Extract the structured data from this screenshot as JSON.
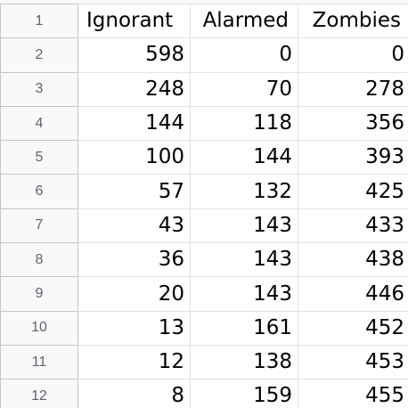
{
  "sheet": {
    "columns": [
      "Ignorant",
      "Alarmed",
      "Zombies"
    ],
    "rows": [
      {
        "row_num": "2",
        "cells": [
          "598",
          "0",
          "0"
        ]
      },
      {
        "row_num": "3",
        "cells": [
          "248",
          "70",
          "278"
        ]
      },
      {
        "row_num": "4",
        "cells": [
          "144",
          "118",
          "356"
        ]
      },
      {
        "row_num": "5",
        "cells": [
          "100",
          "144",
          "393"
        ]
      },
      {
        "row_num": "6",
        "cells": [
          "57",
          "132",
          "425"
        ]
      },
      {
        "row_num": "7",
        "cells": [
          "43",
          "143",
          "433"
        ]
      },
      {
        "row_num": "8",
        "cells": [
          "36",
          "143",
          "438"
        ]
      },
      {
        "row_num": "9",
        "cells": [
          "20",
          "143",
          "446"
        ]
      },
      {
        "row_num": "10",
        "cells": [
          "13",
          "161",
          "452"
        ]
      },
      {
        "row_num": "11",
        "cells": [
          "12",
          "138",
          "453"
        ]
      },
      {
        "row_num": "12",
        "cells": [
          "8",
          "159",
          "455"
        ]
      }
    ],
    "header_row_num": "1"
  },
  "colors": {
    "grid_line": "#e2e3e3",
    "row_header_bg": "#f8f9fa",
    "row_header_text": "#5f6368",
    "cell_text": "#000000"
  }
}
